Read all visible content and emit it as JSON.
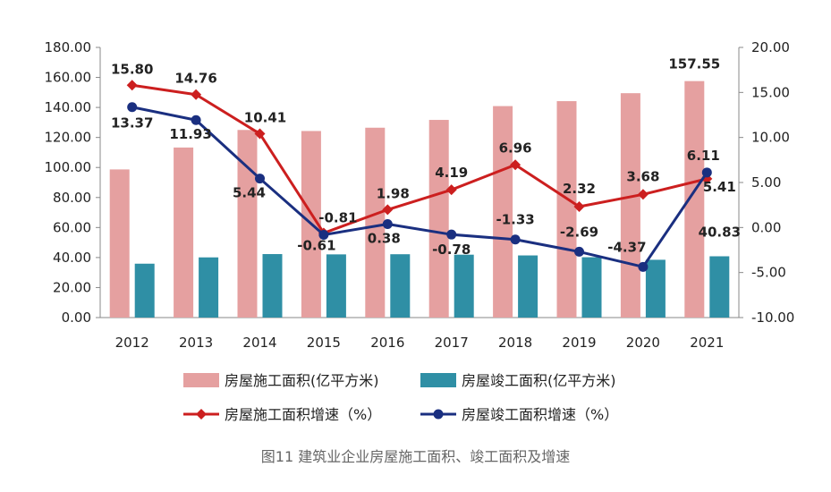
{
  "caption": "图11 建筑业企业房屋施工面积、竣工面积及增速",
  "chart_data": {
    "type": "bar",
    "categories": [
      "2012",
      "2013",
      "2014",
      "2015",
      "2016",
      "2017",
      "2018",
      "2019",
      "2020",
      "2021"
    ],
    "y_left": {
      "ylim": [
        0,
        180
      ],
      "ticks": [
        "0.00",
        "20.00",
        "40.00",
        "60.00",
        "80.00",
        "100.00",
        "120.00",
        "140.00",
        "160.00",
        "180.00"
      ]
    },
    "y_right": {
      "ylim": [
        -10,
        20
      ],
      "ticks": [
        "-10.00",
        "-5.00",
        "0.00",
        "5.00",
        "10.00",
        "15.00",
        "20.00"
      ]
    },
    "legend_position": "bottom",
    "grid": false,
    "series": [
      {
        "name": "房屋施工面积(亿平方米)",
        "type": "bar",
        "axis": "left",
        "color": "#E5A0A0",
        "values": [
          98.7,
          113.3,
          125.0,
          124.3,
          126.5,
          131.7,
          140.9,
          144.2,
          149.5,
          157.55
        ],
        "labels": [
          "",
          "",
          "",
          "",
          "",
          "",
          "",
          "",
          "",
          "157.55"
        ]
      },
      {
        "name": "房屋竣工面积(亿平方米)",
        "type": "bar",
        "axis": "left",
        "color": "#2F8FA5",
        "values": [
          35.9,
          40.1,
          42.3,
          42.1,
          42.2,
          41.9,
          41.4,
          40.2,
          38.5,
          40.83
        ],
        "labels": [
          "",
          "",
          "",
          "",
          "",
          "",
          "",
          "",
          "",
          "40.83"
        ]
      },
      {
        "name": "房屋施工面积增速（%）",
        "type": "line",
        "axis": "right",
        "color": "#CC1F1F",
        "values": [
          15.8,
          14.76,
          10.41,
          -0.61,
          1.98,
          4.19,
          6.96,
          2.32,
          3.68,
          5.41
        ],
        "labels": [
          "15.80",
          "14.76",
          "10.41",
          "-0.61",
          "1.98",
          "4.19",
          "6.96",
          "2.32",
          "3.68",
          "5.41"
        ]
      },
      {
        "name": "房屋竣工面积增速（%）",
        "type": "line",
        "axis": "right",
        "color": "#1A2F80",
        "values": [
          13.37,
          11.93,
          5.44,
          -0.81,
          0.38,
          -0.78,
          -1.33,
          -2.69,
          -4.37,
          6.11
        ],
        "labels": [
          "13.37",
          "11.93",
          "5.44",
          "-0.81",
          "0.38",
          "-0.78",
          "-1.33",
          "-2.69",
          "-4.37",
          "6.11"
        ]
      }
    ]
  }
}
